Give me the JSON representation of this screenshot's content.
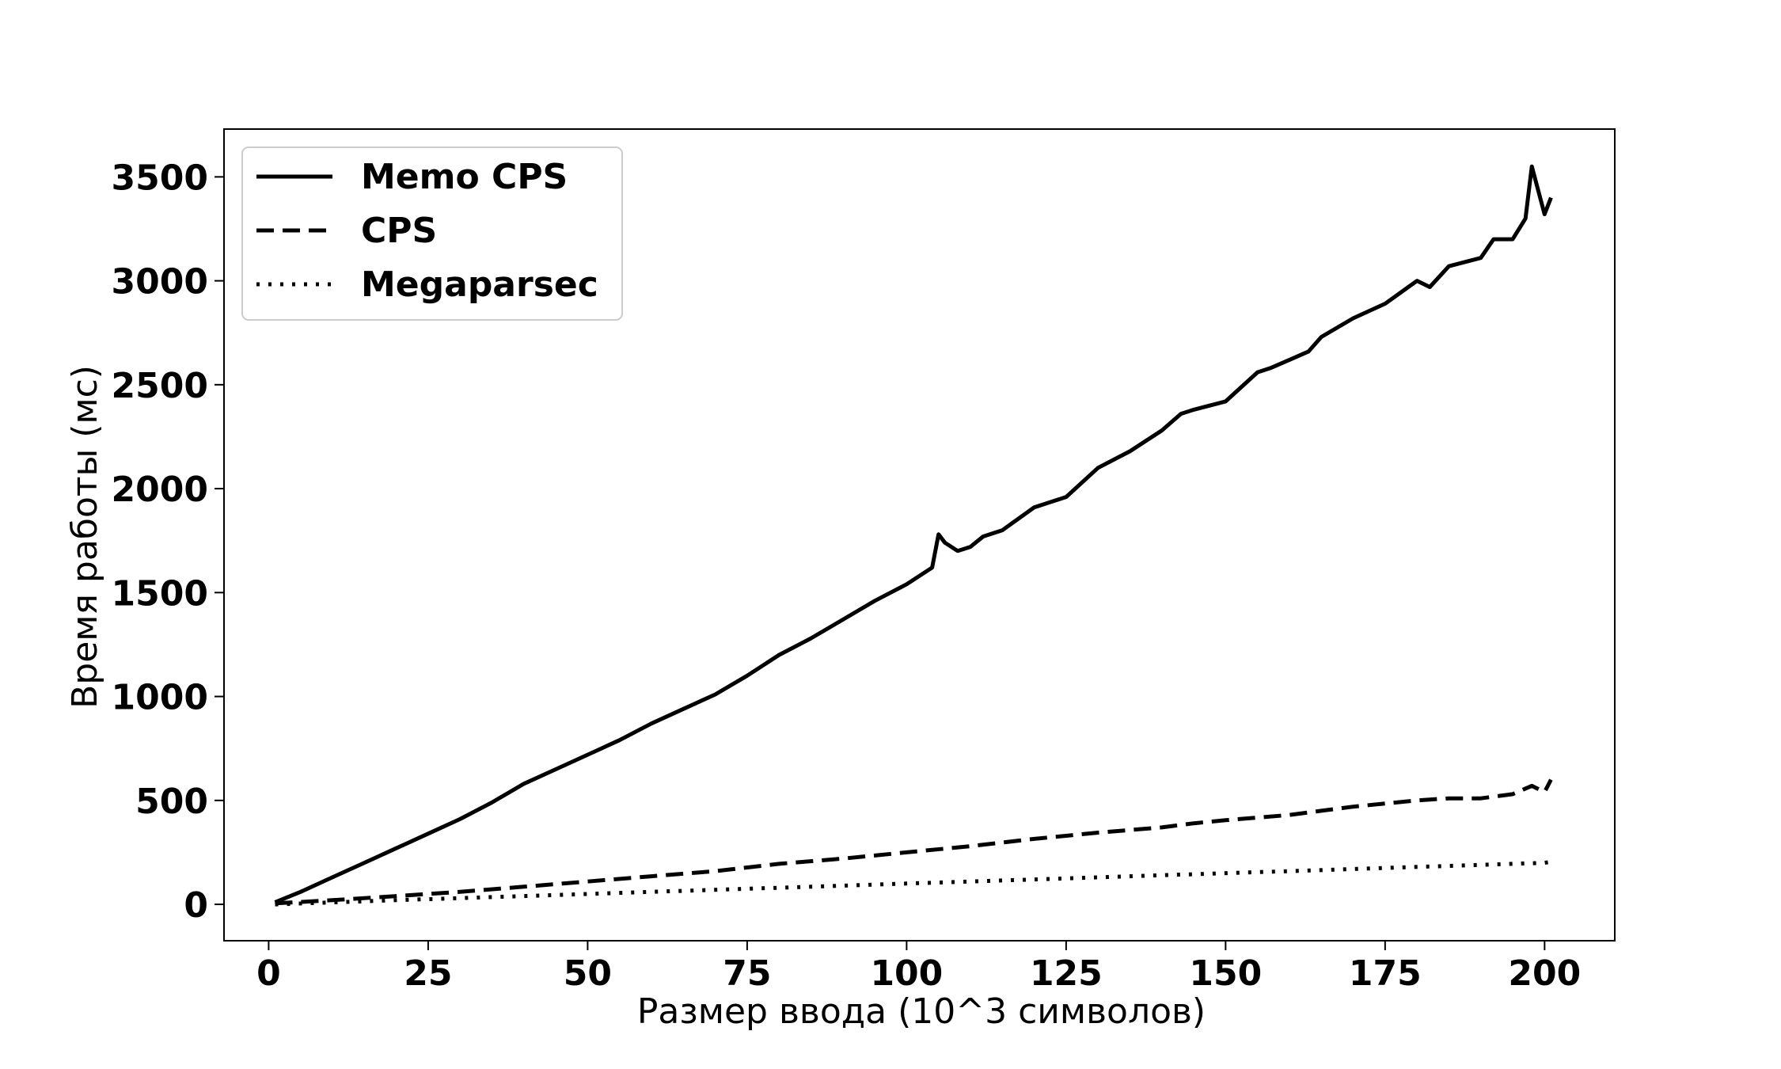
{
  "chart_data": {
    "type": "line",
    "title": "",
    "xlabel": "Размер ввода (10^3 символов)",
    "ylabel": "Время работы (мс)",
    "xlim": [
      -7,
      211
    ],
    "ylim": [
      -175,
      3730
    ],
    "xticks": [
      0,
      25,
      50,
      75,
      100,
      125,
      150,
      175,
      200
    ],
    "xtick_labels": [
      "0",
      "25",
      "50",
      "75",
      "100",
      "125",
      "150",
      "175",
      "200"
    ],
    "yticks": [
      0,
      500,
      1000,
      1500,
      2000,
      2500,
      3000,
      3500
    ],
    "ytick_labels": [
      "0",
      "500",
      "1000",
      "1500",
      "2000",
      "2500",
      "3000",
      "3500"
    ],
    "grid": false,
    "legend_position": "top-left",
    "series": [
      {
        "name": "Memo CPS",
        "style": "solid",
        "color": "#000000",
        "x": [
          1,
          5,
          10,
          15,
          20,
          25,
          30,
          35,
          40,
          45,
          50,
          55,
          60,
          65,
          70,
          75,
          80,
          85,
          90,
          95,
          100,
          102,
          104,
          105,
          106,
          108,
          110,
          112,
          115,
          120,
          125,
          130,
          135,
          140,
          143,
          145,
          150,
          155,
          157,
          160,
          163,
          165,
          170,
          175,
          180,
          182,
          185,
          190,
          192,
          195,
          197,
          198,
          200,
          201
        ],
        "y": [
          10,
          60,
          130,
          200,
          270,
          340,
          410,
          490,
          580,
          650,
          720,
          790,
          870,
          940,
          1010,
          1100,
          1200,
          1280,
          1370,
          1460,
          1540,
          1580,
          1620,
          1780,
          1740,
          1700,
          1720,
          1770,
          1800,
          1910,
          1960,
          2100,
          2180,
          2280,
          2360,
          2380,
          2420,
          2560,
          2580,
          2620,
          2660,
          2730,
          2820,
          2890,
          3000,
          2970,
          3070,
          3110,
          3200,
          3200,
          3300,
          3550,
          3320,
          3400
        ]
      },
      {
        "name": "CPS",
        "style": "dashed",
        "color": "#000000",
        "x": [
          1,
          10,
          20,
          30,
          40,
          50,
          60,
          70,
          80,
          90,
          100,
          110,
          120,
          130,
          140,
          145,
          150,
          160,
          165,
          170,
          180,
          185,
          190,
          195,
          198,
          200,
          201
        ],
        "y": [
          5,
          20,
          40,
          60,
          85,
          110,
          135,
          160,
          195,
          220,
          250,
          280,
          315,
          345,
          370,
          390,
          405,
          430,
          450,
          470,
          500,
          510,
          510,
          530,
          570,
          540,
          600
        ]
      },
      {
        "name": "Megaparsec",
        "style": "dotted",
        "color": "#000000",
        "x": [
          1,
          20,
          40,
          60,
          80,
          100,
          120,
          140,
          160,
          180,
          200,
          201
        ],
        "y": [
          0,
          20,
          40,
          60,
          80,
          100,
          120,
          140,
          160,
          180,
          200,
          205
        ]
      }
    ]
  }
}
